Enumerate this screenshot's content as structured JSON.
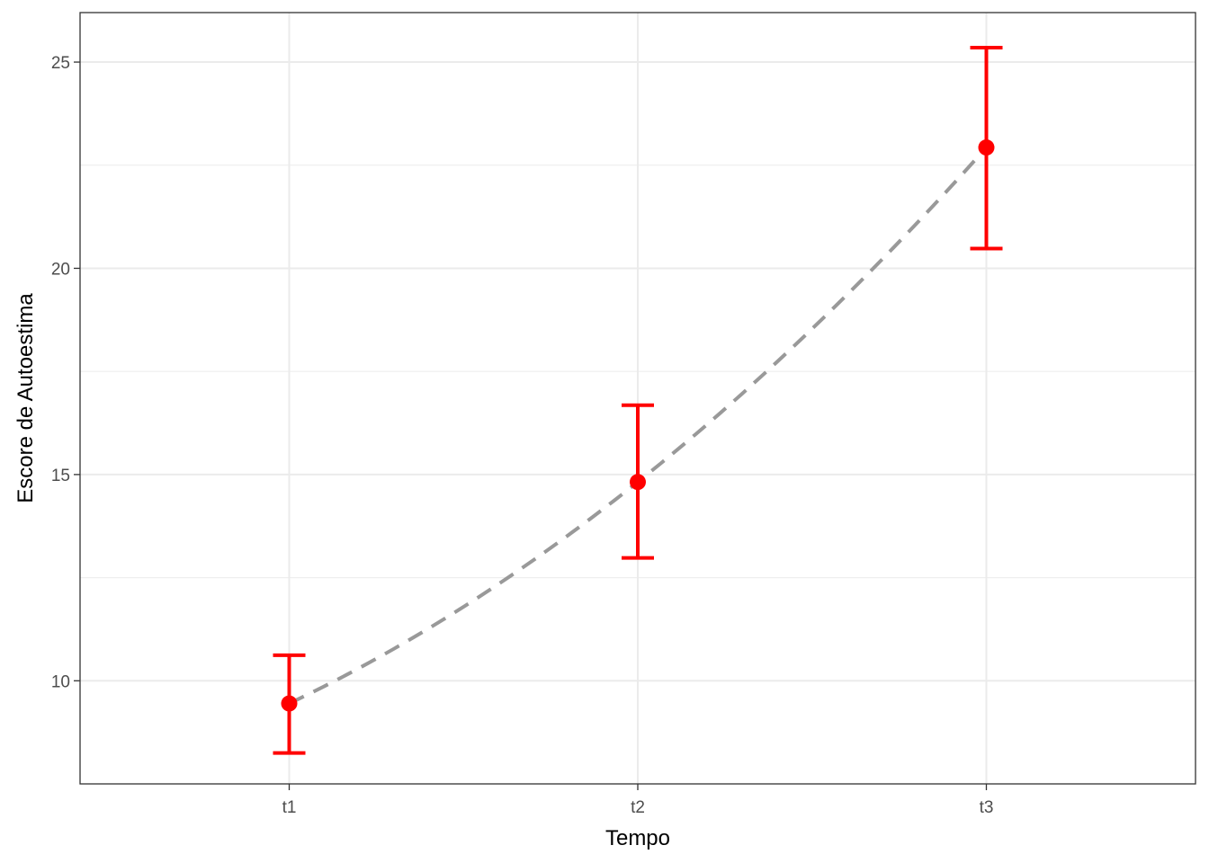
{
  "chart_data": {
    "type": "line",
    "title": "",
    "xlabel": "Tempo",
    "ylabel": "Escore de Autoestima",
    "categories": [
      "t1",
      "t2",
      "t3"
    ],
    "series": [
      {
        "values": [
          9.45,
          14.82,
          22.93
        ],
        "error_lower": [
          8.25,
          12.98,
          20.48
        ],
        "error_upper": [
          10.62,
          16.68,
          25.35
        ]
      }
    ],
    "trend_line": {
      "style": "dashed",
      "shape": "smooth curve",
      "color": "#999999"
    },
    "point_color": "#ff0000",
    "ylim": [
      7.5,
      26.2
    ],
    "yticks": [
      10,
      15,
      20,
      25
    ],
    "grid": true,
    "legend": "none"
  }
}
